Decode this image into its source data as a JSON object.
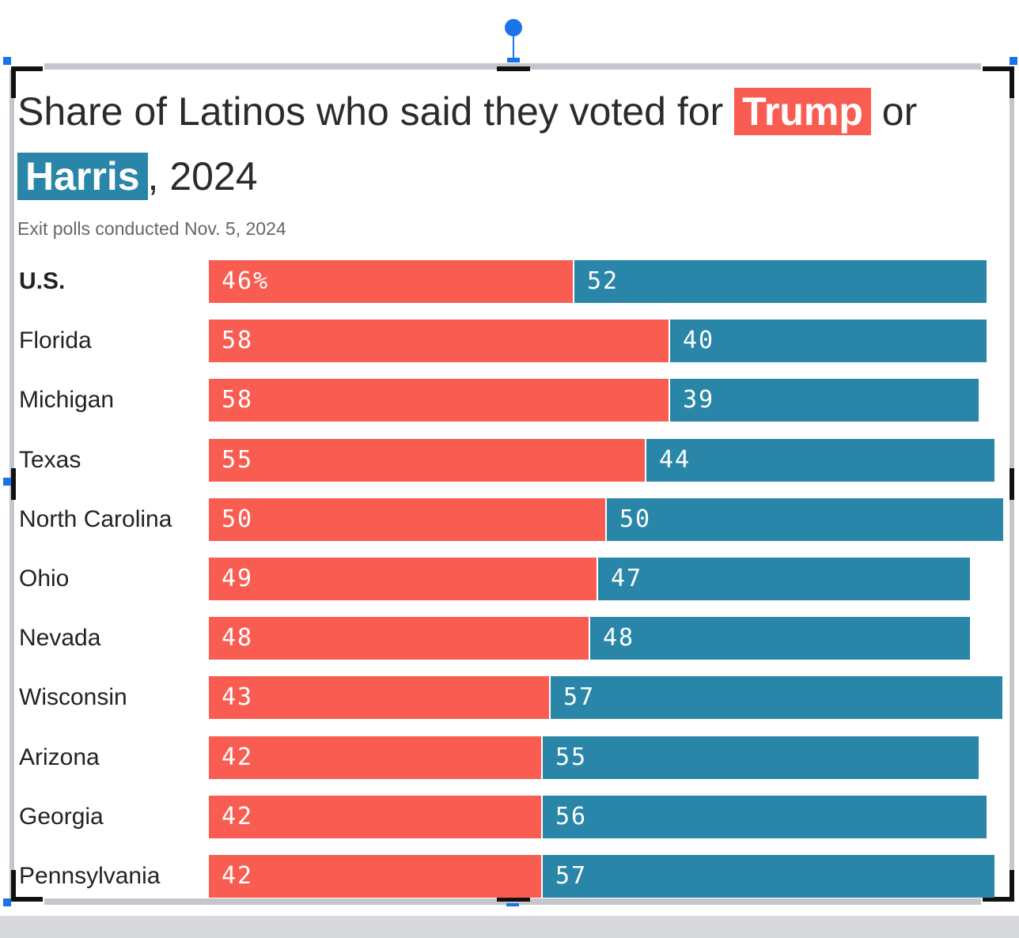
{
  "chart_data": {
    "type": "bar",
    "title_parts": [
      "Share of Latinos who said they voted for ",
      "Trump",
      " or ",
      "Harris",
      ", 2024"
    ],
    "subtitle": "Exit polls conducted Nov. 5, 2024",
    "categories": [
      "U.S.",
      "Florida",
      "Michigan",
      "Texas",
      "North Carolina",
      "Ohio",
      "Nevada",
      "Wisconsin",
      "Arizona",
      "Georgia",
      "Pennsylvania"
    ],
    "series": [
      {
        "name": "Trump",
        "color": "#f95d52",
        "values": [
          46,
          58,
          58,
          55,
          50,
          49,
          48,
          43,
          42,
          42,
          42
        ]
      },
      {
        "name": "Harris",
        "color": "#2a86a8",
        "values": [
          52,
          40,
          39,
          44,
          50,
          47,
          48,
          57,
          55,
          56,
          57
        ]
      }
    ],
    "value_labels": [
      [
        "46%",
        "52"
      ],
      [
        "58",
        "40"
      ],
      [
        "58",
        "39"
      ],
      [
        "55",
        "44"
      ],
      [
        "50",
        "50"
      ],
      [
        "49",
        "47"
      ],
      [
        "48",
        "48"
      ],
      [
        "43",
        "57"
      ],
      [
        "42",
        "55"
      ],
      [
        "42",
        "56"
      ],
      [
        "42",
        "57"
      ]
    ],
    "stacked": true,
    "orientation": "horizontal",
    "xlim": [
      0,
      100
    ],
    "grid": false
  }
}
